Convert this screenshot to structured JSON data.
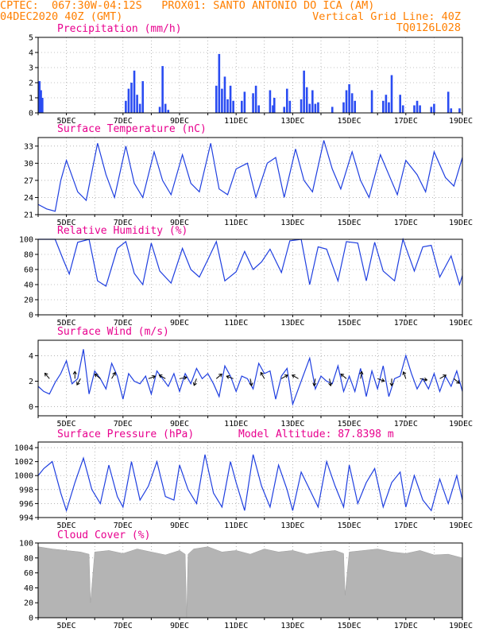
{
  "header": {
    "line1_left": "CPTEC:  067:30W-04:12S   PROX01: SANTO ANTONIO DO ICA (AM)",
    "line2_left": "04DEC2020 40Z (GMT)",
    "line2_right": "Vertical Grid Line: 40Z",
    "line3_right": "TQ0126L028"
  },
  "x_ticks": [
    "5DEC",
    "7DEC",
    "9DEC",
    "11DEC",
    "13DEC",
    "15DEC",
    "17DEC",
    "19DEC"
  ],
  "colors": {
    "header": "#ff7f00",
    "title": "#e8008e",
    "series": "#1f3fe0",
    "bars": "#2a4cf2",
    "cloud": "#b4b4b4",
    "grid": "#888888"
  },
  "chart_data": [
    {
      "type": "bar",
      "title": "Precipitation (mm/h)",
      "ylim": [
        0,
        5
      ],
      "yticks": [
        "0",
        "1",
        "2",
        "3",
        "4",
        "5"
      ],
      "x_range_days": [
        4.0,
        19.0
      ],
      "x": [
        4.05,
        4.1,
        4.15,
        7.1,
        7.2,
        7.3,
        7.4,
        7.5,
        7.6,
        7.7,
        8.3,
        8.4,
        8.5,
        8.6,
        10.3,
        10.4,
        10.5,
        10.6,
        10.7,
        10.8,
        10.9,
        11.2,
        11.3,
        11.6,
        11.7,
        11.8,
        12.2,
        12.3,
        12.35,
        12.7,
        12.8,
        12.9,
        13.3,
        13.4,
        13.5,
        13.6,
        13.7,
        13.8,
        13.9,
        14.4,
        14.8,
        14.9,
        15.0,
        15.1,
        15.2,
        15.8,
        16.2,
        16.3,
        16.4,
        16.5,
        16.8,
        16.9,
        17.3,
        17.4,
        17.5,
        17.9,
        18.0,
        18.5,
        18.6,
        18.9
      ],
      "values": [
        2.1,
        1.5,
        1.0,
        0.8,
        1.6,
        2.0,
        2.8,
        1.2,
        0.6,
        2.1,
        0.4,
        3.1,
        0.6,
        0.2,
        1.8,
        3.9,
        1.6,
        2.4,
        0.9,
        1.8,
        0.8,
        0.8,
        1.4,
        1.3,
        1.8,
        0.5,
        1.5,
        0.5,
        1.0,
        0.4,
        1.6,
        0.8,
        0.9,
        2.8,
        1.7,
        0.6,
        1.5,
        0.6,
        0.7,
        0.4,
        0.7,
        1.5,
        1.9,
        1.3,
        0.8,
        1.5,
        0.8,
        1.2,
        0.7,
        2.5,
        1.2,
        0.5,
        0.5,
        0.8,
        0.5,
        0.4,
        0.6,
        1.4,
        0.3,
        0.3
      ]
    },
    {
      "type": "line",
      "title": "Surface Temperature (nC)",
      "ylim": [
        21,
        34.5
      ],
      "yticks": [
        "21",
        "24",
        "27",
        "30",
        "33"
      ],
      "x_range_days": [
        4.0,
        19.0
      ],
      "x": [
        4.0,
        4.3,
        4.6,
        4.8,
        5.0,
        5.4,
        5.7,
        6.1,
        6.4,
        6.7,
        7.1,
        7.4,
        7.7,
        8.1,
        8.4,
        8.7,
        9.1,
        9.4,
        9.7,
        10.1,
        10.4,
        10.7,
        11.0,
        11.4,
        11.7,
        12.1,
        12.4,
        12.7,
        13.1,
        13.4,
        13.7,
        14.1,
        14.4,
        14.7,
        15.1,
        15.4,
        15.7,
        16.1,
        16.4,
        16.7,
        17.0,
        17.4,
        17.7,
        18.0,
        18.4,
        18.7,
        19.0
      ],
      "values": [
        22.8,
        22.0,
        21.6,
        27.0,
        30.5,
        25.0,
        23.5,
        33.5,
        28.0,
        24.0,
        33.0,
        26.5,
        24.0,
        32.0,
        27.0,
        24.5,
        31.5,
        26.5,
        25.0,
        33.5,
        25.5,
        24.5,
        29.0,
        30.0,
        24.0,
        30.0,
        31.0,
        24.0,
        32.5,
        27.0,
        25.0,
        34.0,
        29.0,
        25.5,
        32.0,
        27.0,
        24.0,
        31.5,
        28.0,
        24.5,
        30.5,
        28.0,
        25.0,
        32.0,
        27.5,
        26.0,
        31.0
      ]
    },
    {
      "type": "line",
      "title": "Relative Humidity (%)",
      "ylim": [
        0,
        100
      ],
      "yticks": [
        "0",
        "20",
        "40",
        "60",
        "80",
        "100"
      ],
      "x_range_days": [
        4.0,
        19.0
      ],
      "x": [
        4.0,
        4.3,
        4.6,
        4.9,
        5.1,
        5.4,
        5.8,
        6.1,
        6.4,
        6.8,
        7.1,
        7.4,
        7.7,
        8.0,
        8.3,
        8.7,
        9.1,
        9.4,
        9.7,
        10.0,
        10.3,
        10.6,
        11.0,
        11.3,
        11.6,
        11.9,
        12.2,
        12.6,
        12.9,
        13.3,
        13.6,
        13.9,
        14.2,
        14.6,
        14.9,
        15.3,
        15.6,
        15.9,
        16.2,
        16.6,
        16.9,
        17.3,
        17.6,
        17.9,
        18.2,
        18.6,
        18.9,
        19.0
      ],
      "values": [
        100,
        100,
        100,
        72,
        54,
        96,
        100,
        45,
        38,
        88,
        97,
        55,
        40,
        95,
        58,
        42,
        88,
        60,
        50,
        73,
        97,
        45,
        57,
        84,
        60,
        70,
        87,
        56,
        98,
        100,
        40,
        90,
        87,
        45,
        97,
        95,
        45,
        96,
        58,
        45,
        100,
        58,
        90,
        92,
        50,
        78,
        40,
        52
      ]
    },
    {
      "type": "line",
      "title": "Surface Wind (m/s)",
      "ylim": [
        -0.7,
        5.2
      ],
      "yticks": [
        "0",
        "2",
        "4"
      ],
      "x_range_days": [
        4.0,
        19.0
      ],
      "x": [
        4.0,
        4.2,
        4.4,
        4.6,
        4.8,
        5.0,
        5.2,
        5.4,
        5.6,
        5.8,
        6.0,
        6.2,
        6.4,
        6.6,
        6.8,
        7.0,
        7.2,
        7.4,
        7.6,
        7.8,
        8.0,
        8.2,
        8.4,
        8.6,
        8.8,
        9.0,
        9.2,
        9.4,
        9.6,
        9.8,
        10.0,
        10.2,
        10.4,
        10.6,
        10.8,
        11.0,
        11.2,
        11.4,
        11.6,
        11.8,
        12.0,
        12.2,
        12.4,
        12.6,
        12.8,
        13.0,
        13.2,
        13.4,
        13.6,
        13.8,
        14.0,
        14.2,
        14.4,
        14.6,
        14.8,
        15.0,
        15.2,
        15.4,
        15.6,
        15.8,
        16.0,
        16.2,
        16.4,
        16.6,
        16.8,
        17.0,
        17.2,
        17.4,
        17.6,
        17.8,
        18.0,
        18.2,
        18.4,
        18.6,
        18.8,
        19.0
      ],
      "values": [
        1.6,
        1.2,
        1.0,
        1.9,
        2.6,
        3.6,
        1.8,
        2.2,
        4.5,
        1.0,
        2.8,
        2.2,
        1.4,
        3.4,
        2.4,
        0.6,
        2.6,
        2.0,
        1.8,
        2.4,
        1.0,
        2.8,
        2.2,
        1.6,
        2.6,
        1.2,
        2.6,
        1.8,
        3.0,
        2.2,
        2.6,
        1.8,
        0.8,
        3.2,
        2.4,
        1.2,
        2.4,
        2.2,
        1.4,
        3.4,
        2.6,
        2.8,
        0.6,
        2.4,
        3.0,
        0.2,
        1.4,
        2.6,
        3.8,
        1.4,
        2.4,
        2.0,
        1.8,
        3.2,
        1.2,
        2.4,
        1.2,
        3.0,
        0.8,
        2.8,
        1.4,
        3.2,
        0.8,
        2.2,
        2.4,
        4.0,
        2.6,
        1.4,
        2.2,
        1.4,
        2.6,
        1.2,
        2.4,
        1.6,
        2.8,
        1.2
      ],
      "arrows": [
        {
          "x": 4.4,
          "angle": -130
        },
        {
          "x": 5.3,
          "angle": -90
        },
        {
          "x": 5.5,
          "angle": 120
        },
        {
          "x": 6.2,
          "angle": -140
        },
        {
          "x": 6.6,
          "angle": -60
        },
        {
          "x": 7.9,
          "angle": -20
        },
        {
          "x": 8.5,
          "angle": -150
        },
        {
          "x": 9.0,
          "angle": -10
        },
        {
          "x": 9.6,
          "angle": 110
        },
        {
          "x": 10.3,
          "angle": -40
        },
        {
          "x": 10.9,
          "angle": -160
        },
        {
          "x": 11.5,
          "angle": 80
        },
        {
          "x": 12.0,
          "angle": -120
        },
        {
          "x": 12.6,
          "angle": -30
        },
        {
          "x": 13.2,
          "angle": -150
        },
        {
          "x": 13.8,
          "angle": 100
        },
        {
          "x": 14.3,
          "angle": 80
        },
        {
          "x": 14.9,
          "angle": -140
        },
        {
          "x": 15.4,
          "angle": -80
        },
        {
          "x": 16.0,
          "angle": 20
        },
        {
          "x": 16.5,
          "angle": 90
        },
        {
          "x": 17.0,
          "angle": -110
        },
        {
          "x": 17.5,
          "angle": 10
        },
        {
          "x": 18.2,
          "angle": -30
        },
        {
          "x": 18.7,
          "angle": 40
        }
      ]
    },
    {
      "type": "line",
      "title": "Surface Pressure (hPa)",
      "annotation": "Model Altitude: 87.8398 m",
      "ylim": [
        994,
        1004.8
      ],
      "yticks": [
        "994",
        "996",
        "998",
        "1000",
        "1002",
        "1004"
      ],
      "x_range_days": [
        4.0,
        19.0
      ],
      "x": [
        4.0,
        4.2,
        4.5,
        4.8,
        5.0,
        5.3,
        5.6,
        5.9,
        6.2,
        6.5,
        6.8,
        7.0,
        7.3,
        7.6,
        7.9,
        8.2,
        8.5,
        8.8,
        9.0,
        9.3,
        9.6,
        9.9,
        10.2,
        10.5,
        10.8,
        11.0,
        11.3,
        11.6,
        11.9,
        12.2,
        12.5,
        12.8,
        13.0,
        13.3,
        13.6,
        13.9,
        14.2,
        14.5,
        14.8,
        15.0,
        15.3,
        15.6,
        15.9,
        16.2,
        16.5,
        16.8,
        17.0,
        17.3,
        17.6,
        17.9,
        18.2,
        18.5,
        18.8,
        19.0
      ],
      "values": [
        1000.0,
        1001.0,
        1002.0,
        997.5,
        995.0,
        999.0,
        1002.5,
        998.0,
        996.0,
        1001.5,
        997.0,
        995.5,
        1002.0,
        996.5,
        998.5,
        1002.0,
        997.0,
        996.5,
        1001.5,
        998.0,
        996.0,
        1003.0,
        997.5,
        995.5,
        1002.0,
        999.0,
        995.0,
        1003.0,
        998.5,
        995.5,
        1001.5,
        998.0,
        995.0,
        1000.5,
        998.0,
        995.5,
        1002.0,
        998.5,
        995.5,
        1001.5,
        996.0,
        999.0,
        1001.0,
        995.5,
        999.0,
        1000.5,
        995.5,
        1000.0,
        996.5,
        995.0,
        999.5,
        996.0,
        1000.0,
        996.5
      ]
    },
    {
      "type": "area",
      "title": "Cloud Cover (%)",
      "ylim": [
        0,
        100
      ],
      "yticks": [
        "0",
        "20",
        "40",
        "60",
        "80",
        "100"
      ],
      "x_range_days": [
        4.0,
        19.0
      ],
      "x": [
        4.0,
        4.5,
        5.0,
        5.5,
        5.8,
        5.85,
        6.0,
        6.5,
        7.0,
        7.5,
        8.0,
        8.5,
        9.0,
        9.2,
        9.25,
        9.3,
        9.5,
        10.0,
        10.5,
        11.0,
        11.5,
        12.0,
        12.5,
        13.0,
        13.5,
        14.0,
        14.5,
        14.8,
        14.85,
        15.0,
        15.5,
        16.0,
        16.5,
        17.0,
        17.5,
        18.0,
        18.5,
        19.0
      ],
      "values": [
        95,
        92,
        90,
        88,
        85,
        20,
        88,
        90,
        86,
        92,
        88,
        84,
        90,
        85,
        0,
        85,
        92,
        95,
        88,
        90,
        85,
        92,
        88,
        90,
        85,
        88,
        90,
        86,
        30,
        88,
        90,
        92,
        88,
        86,
        90,
        84,
        85,
        80
      ]
    }
  ]
}
